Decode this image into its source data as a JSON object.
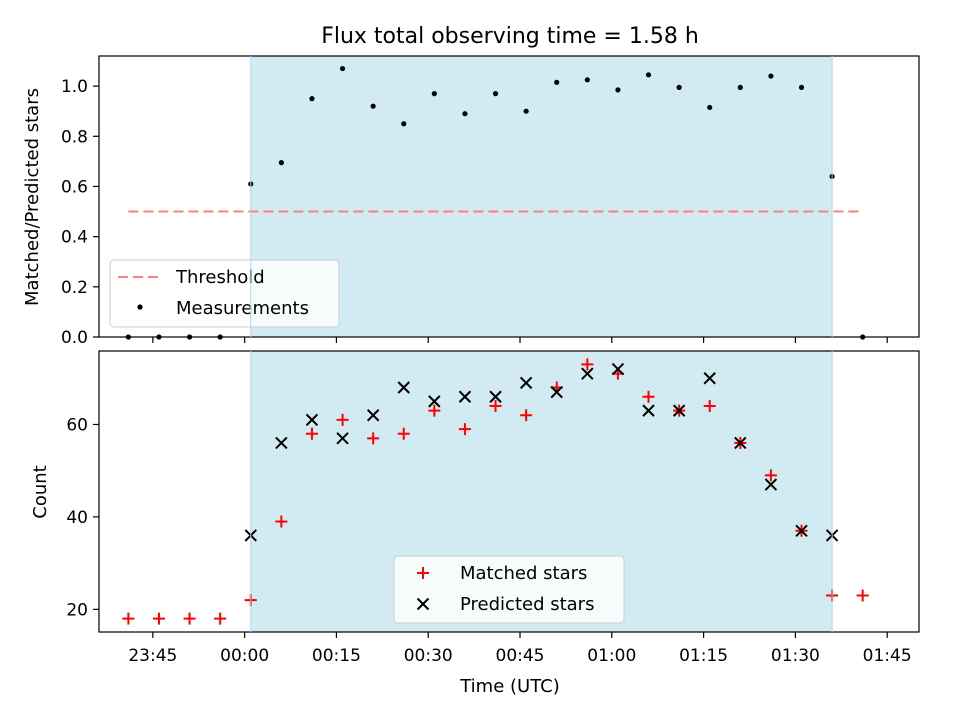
{
  "chart_data": [
    {
      "type": "scatter",
      "title": "Flux total observing time = 1.58 h",
      "ylabel": "Matched/Predicted stars",
      "ylim": [
        0.0,
        1.12
      ],
      "yticks": [
        "0.0",
        "0.2",
        "0.4",
        "0.6",
        "0.8",
        "1.0"
      ],
      "xlim_minutes": [
        -23.8,
        110.2
      ],
      "shaded_region_minutes": [
        1,
        96
      ],
      "threshold": {
        "name": "Threshold",
        "value": 0.5,
        "x_start_minutes": -19,
        "x_end_minutes": 101
      },
      "series": [
        {
          "name": "Measurements",
          "x_minutes": [
            -19,
            -14,
            -9,
            -4,
            1,
            6,
            11,
            16,
            21,
            26,
            31,
            36,
            41,
            46,
            51,
            56,
            61,
            66,
            71,
            76,
            81,
            86,
            91,
            96,
            101
          ],
          "values": [
            0.0,
            0.0,
            0.0,
            0.0,
            0.61,
            0.695,
            0.95,
            1.07,
            0.92,
            0.85,
            0.97,
            0.89,
            0.97,
            0.9,
            1.015,
            1.025,
            0.985,
            1.045,
            0.995,
            0.915,
            0.995,
            1.04,
            0.995,
            0.64,
            0.0
          ]
        }
      ],
      "legend": {
        "placement": "lower-left",
        "entries": [
          "Threshold",
          "Measurements"
        ]
      }
    },
    {
      "type": "scatter",
      "xlabel": "Time (UTC)",
      "ylabel": "Count",
      "ylim": [
        15.1,
        75.9
      ],
      "yticks": [
        "20",
        "40",
        "60"
      ],
      "xticks": [
        "23:45",
        "00:00",
        "00:15",
        "00:30",
        "00:45",
        "01:00",
        "01:15",
        "01:30",
        "01:45"
      ],
      "xlim_minutes": [
        -23.8,
        110.2
      ],
      "shaded_region_minutes": [
        1,
        96
      ],
      "series": [
        {
          "name": "Matched stars",
          "x_minutes": [
            -19,
            -14,
            -9,
            -4,
            1,
            6,
            11,
            16,
            21,
            26,
            31,
            36,
            41,
            46,
            51,
            56,
            61,
            66,
            71,
            76,
            81,
            86,
            91,
            96,
            101
          ],
          "values": [
            18,
            18,
            18,
            18,
            22,
            39,
            58,
            61,
            57,
            58,
            63,
            59,
            64,
            62,
            68,
            73,
            71,
            66,
            63,
            64,
            56,
            49,
            37,
            23,
            23
          ]
        },
        {
          "name": "Predicted stars",
          "x_minutes": [
            1,
            6,
            11,
            16,
            21,
            26,
            31,
            36,
            41,
            46,
            51,
            56,
            61,
            66,
            71,
            76,
            81,
            86,
            91,
            96
          ],
          "values": [
            36,
            56,
            61,
            57,
            62,
            68,
            65,
            66,
            66,
            69,
            67,
            71,
            72,
            63,
            63,
            70,
            56,
            47,
            37,
            36
          ]
        }
      ],
      "legend": {
        "placement": "lower-center",
        "entries": [
          "Matched stars",
          "Predicted stars"
        ]
      }
    }
  ],
  "colors": {
    "shade": "#add8e6",
    "threshold": "#ff7f7f",
    "measurements": "#000000",
    "matched": "#ff0000",
    "predicted": "#000000"
  }
}
